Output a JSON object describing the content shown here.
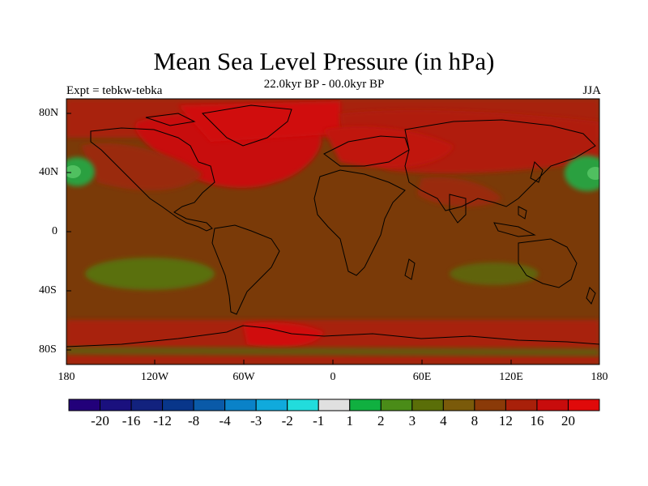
{
  "title": "Mean Sea Level Pressure (in hPa)",
  "subtitle": "22.0kyr BP - 00.0kyr BP",
  "experiment": "Expt = tebkw-tebka",
  "season": "JJA",
  "lat_labels": [
    "80N",
    "40N",
    "0",
    "40S",
    "80S"
  ],
  "lon_labels": [
    "180",
    "120W",
    "60W",
    "0",
    "60E",
    "120E",
    "180"
  ],
  "colorbar": {
    "labels": [
      "-20",
      "-16",
      "-12",
      "-8",
      "-4",
      "-3",
      "-2",
      "-1",
      "1",
      "2",
      "3",
      "4",
      "8",
      "12",
      "16",
      "20"
    ],
    "colors": [
      "#22007a",
      "#1a107e",
      "#12227e",
      "#08368a",
      "#0a5aa8",
      "#0a82c8",
      "#10aadc",
      "#22dcdc",
      "#e0e0e0",
      "#10b040",
      "#4a8c18",
      "#5a6e08",
      "#7a5a0a",
      "#8a3a08",
      "#a8200a",
      "#c80c0c",
      "#e00a0a"
    ]
  },
  "colors": {
    "background_field": "#7a3a08",
    "positive_high": "#c81010",
    "positive_mid": "#9a2a0a",
    "positive_low_green": "#4a8020",
    "anomaly_green": "#2aa040",
    "coastline": "#000000"
  }
}
